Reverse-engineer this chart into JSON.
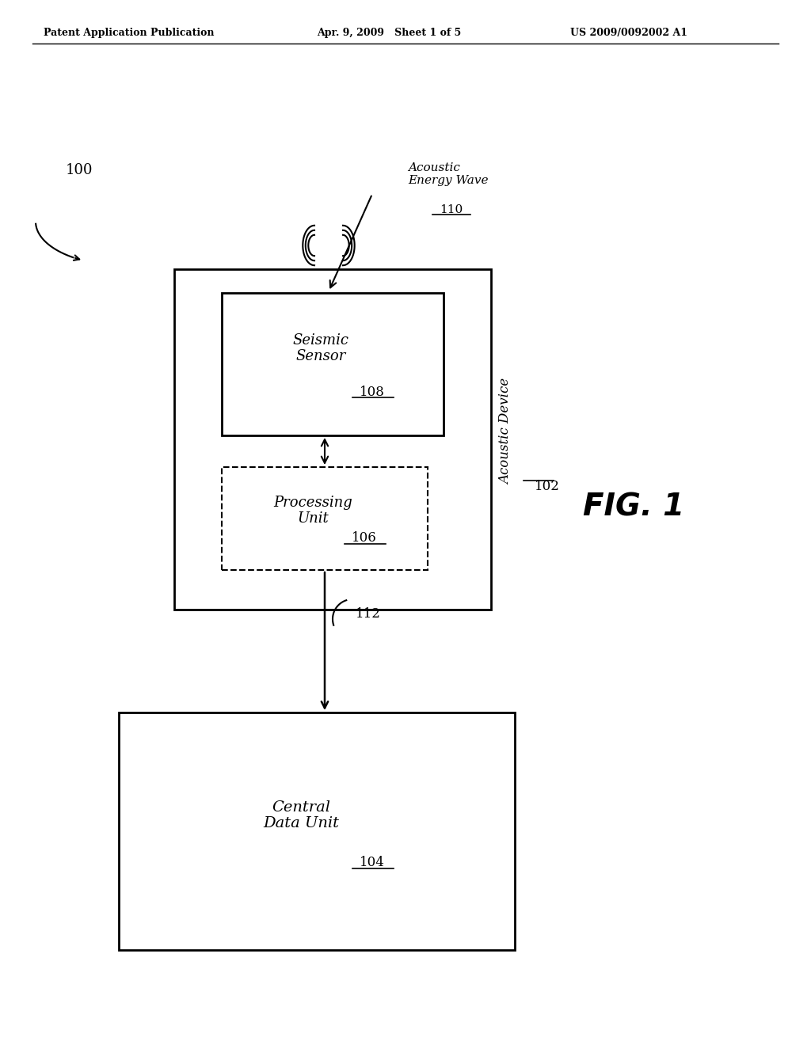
{
  "background_color": "#ffffff",
  "header_text": "Patent Application Publication    Apr. 9, 2009   Sheet 1 of 5         US 2009/0092002 A1",
  "fig1_label": "FIG. 1",
  "label_100": "100",
  "label_102": "102",
  "label_104": "104",
  "label_106": "106",
  "label_108": "108",
  "label_110": "110",
  "label_112": "112",
  "acoustic_device_label": "Acoustic Device",
  "seismic_sensor_label": "Seismic\nSensor",
  "processing_unit_label": "Processing\nUnit",
  "central_data_unit_label": "Central\nData Unit",
  "acoustic_energy_wave_label": "Acoustic\nEnergy Wave"
}
